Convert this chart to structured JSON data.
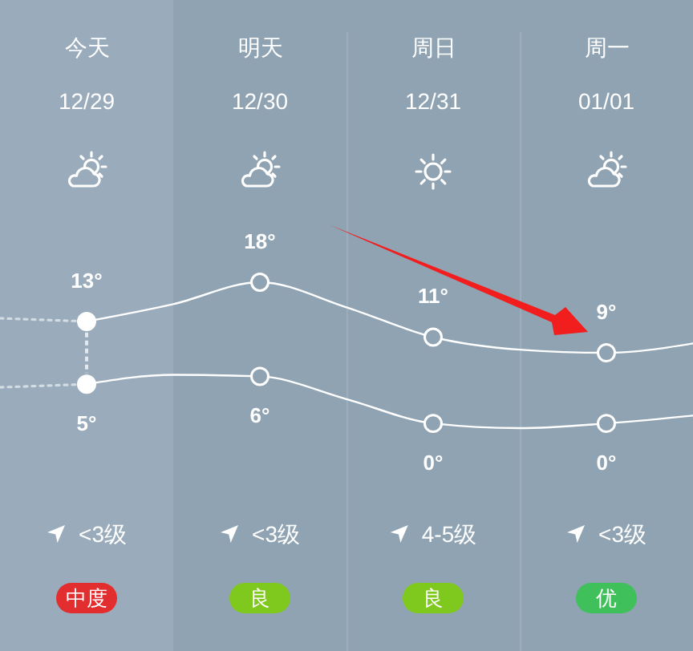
{
  "chart_data": {
    "type": "line",
    "categories": [
      null,
      "今天",
      null,
      "明天",
      null,
      "周日",
      null,
      "周一",
      null
    ],
    "tick_labels": "x",
    "line_style": "solid",
    "series": [
      {
        "color": "#ffffff",
        "values": [
          null,
          13,
          15.2,
          18,
          14.8,
          11,
          9.4,
          9,
          10.2
        ]
      },
      {
        "color": "#ffffff",
        "values": [
          null,
          5,
          6.2,
          6,
          3.1,
          0,
          -0.6,
          0,
          1
        ]
      },
      {
        "color": "#d3dbe3",
        "line_style": "dotted",
        "values": [
          13.4,
          13,
          null,
          null,
          null,
          null,
          null,
          null,
          null
        ]
      },
      {
        "color": "#d3dbe3",
        "line_style": "dotted",
        "values": [
          4.6,
          5,
          null,
          null,
          null,
          null,
          null,
          null,
          null
        ]
      },
      {
        "type": "scatter",
        "marker": "circle",
        "color": "#ffffff",
        "values": [
          null,
          13,
          null,
          18,
          null,
          11,
          null,
          9,
          null
        ],
        "value_labels": [
          null,
          "13°",
          null,
          "18°",
          null,
          "11°",
          null,
          "9°",
          null
        ],
        "colors": [
          null,
          "#ffffff",
          null,
          "#8fa3b2",
          null,
          "#8fa3b2",
          null,
          "#8fa3b2",
          null
        ]
      },
      {
        "type": "scatter",
        "marker": "circle",
        "color": "#ffffff",
        "values": [
          null,
          5,
          null,
          6,
          null,
          0,
          null,
          0,
          null
        ],
        "value_labels": [
          null,
          "5°",
          null,
          "6°",
          null,
          "0°",
          null,
          "0°",
          null
        ],
        "colors": [
          null,
          "#ffffff",
          null,
          "#8fa3b2",
          null,
          "#8fa3b2",
          null,
          "#8fa3b2",
          null
        ]
      }
    ],
    "annotations": [
      "12/29",
      "12/30",
      "12/31",
      "01/01",
      "<3级",
      "<3级",
      "4-5级",
      "<3级",
      "中度",
      "良",
      "良",
      "优"
    ]
  }
}
